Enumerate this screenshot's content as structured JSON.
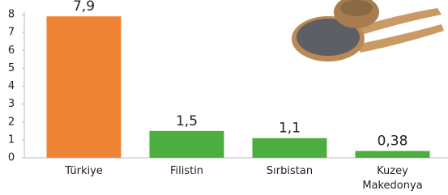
{
  "chart_data": {
    "type": "bar",
    "categories": [
      "Türkiye",
      "Filistin",
      "Sırbistan",
      "Kuzey Makedonya"
    ],
    "values": [
      7.9,
      1.5,
      1.1,
      0.38
    ],
    "value_labels": [
      "7,9",
      "1,5",
      "1,1",
      "0,38"
    ],
    "colors": [
      "#ee8433",
      "#4cae3f",
      "#4cae3f",
      "#4cae3f"
    ],
    "ylim": [
      0,
      8
    ],
    "yticks": [
      0,
      1,
      2,
      3,
      4,
      5,
      6,
      7,
      8
    ],
    "grid": false
  }
}
